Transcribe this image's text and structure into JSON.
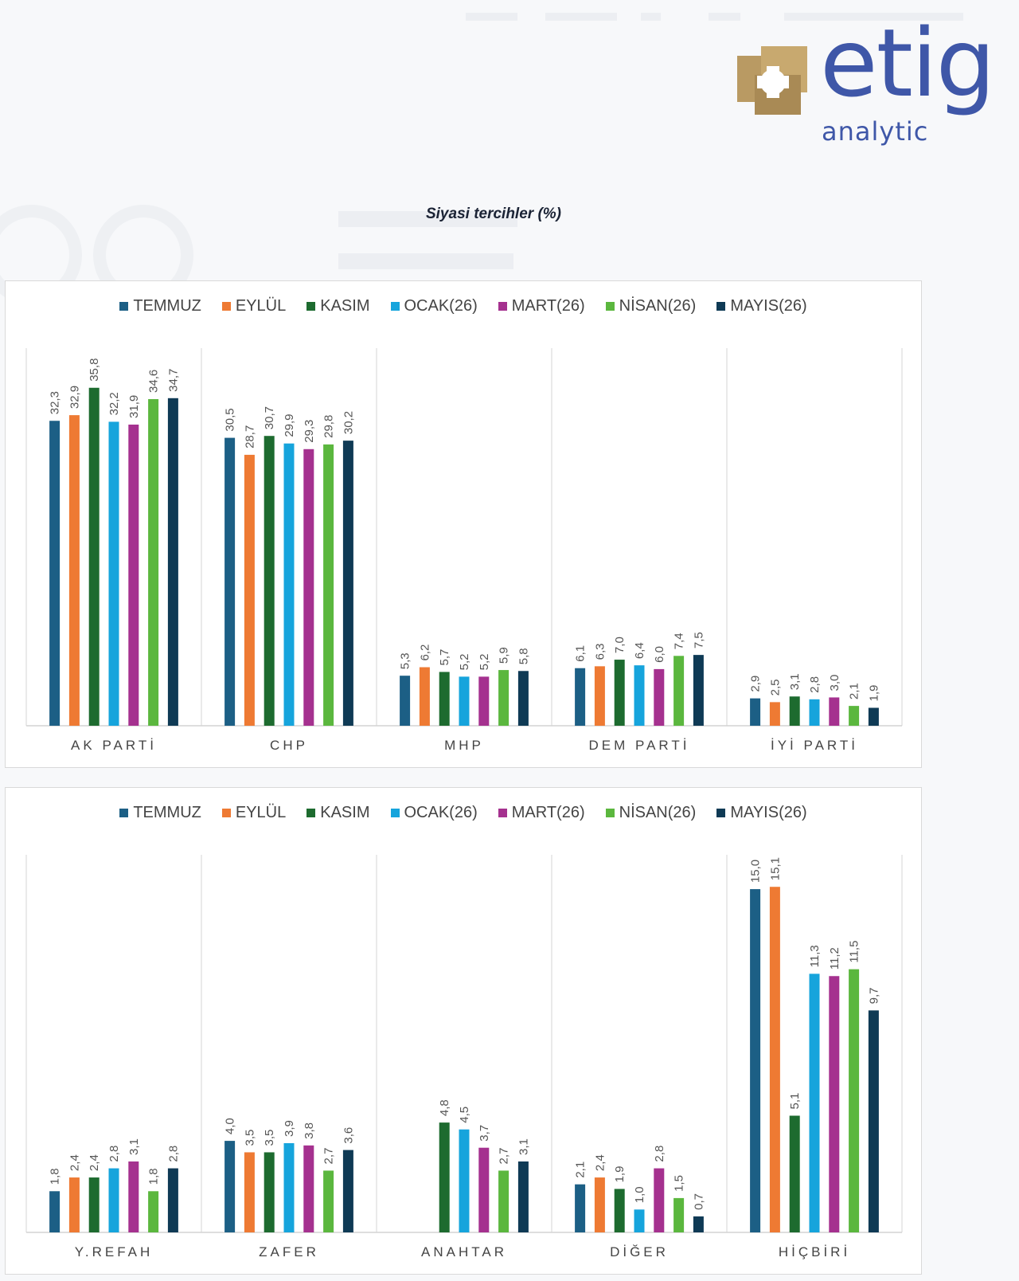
{
  "logo": {
    "word": "etig",
    "sub": "analytic"
  },
  "title": "Siyasi tercihler (%)",
  "colors": {
    "TEMMUZ": "#1c5f85",
    "EYLÜL": "#ee7a33",
    "KASIM": "#1d6b2f",
    "OCAK(26)": "#16a4dc",
    "MART(26)": "#a5318f",
    "NİSAN(26)": "#5bb73e",
    "MAYIS(26)": "#0f3a55"
  },
  "legend": [
    "TEMMUZ",
    "EYLÜL",
    "KASIM",
    "OCAK(26)",
    "MART(26)",
    "NİSAN(26)",
    "MAYIS(26)"
  ],
  "chart_data": [
    {
      "type": "bar",
      "title": "Siyasi tercihler (%)",
      "categories": [
        "AK PARTİ",
        "CHP",
        "MHP",
        "DEM PARTİ",
        "İYİ PARTİ"
      ],
      "ylim": [
        0,
        40
      ],
      "legend_position": "top",
      "grid": false,
      "series": [
        {
          "name": "TEMMUZ",
          "values": [
            32.3,
            30.5,
            5.3,
            6.1,
            2.9
          ],
          "labels": [
            "32,3",
            "30,5",
            "5,3",
            "6,1",
            "2,9"
          ]
        },
        {
          "name": "EYLÜL",
          "values": [
            32.9,
            28.7,
            6.2,
            6.3,
            2.5
          ],
          "labels": [
            "32,9",
            "28,7",
            "6,2",
            "6,3",
            "2,5"
          ]
        },
        {
          "name": "KASIM",
          "values": [
            35.8,
            30.7,
            5.7,
            7.0,
            3.1
          ],
          "labels": [
            "35,8",
            "30,7",
            "5,7",
            "7,0",
            "3,1"
          ]
        },
        {
          "name": "OCAK(26)",
          "values": [
            32.2,
            29.9,
            5.2,
            6.4,
            2.8
          ],
          "labels": [
            "32,2",
            "29,9",
            "5,2",
            "6,4",
            "2,8"
          ]
        },
        {
          "name": "MART(26)",
          "values": [
            31.9,
            29.3,
            5.2,
            6.0,
            3.0
          ],
          "labels": [
            "31,9",
            "29,3",
            "5,2",
            "6,0",
            "3,0"
          ]
        },
        {
          "name": "NİSAN(26)",
          "values": [
            34.6,
            29.8,
            5.9,
            7.4,
            2.1
          ],
          "labels": [
            "34,6",
            "29,8",
            "5,9",
            "7,4",
            "2,1"
          ]
        },
        {
          "name": "MAYIS(26)",
          "values": [
            34.7,
            30.2,
            5.8,
            7.5,
            1.9
          ],
          "labels": [
            "34,7",
            "30,2",
            "5,8",
            "7,5",
            "1,9"
          ]
        }
      ]
    },
    {
      "type": "bar",
      "categories": [
        "Y.REFAH",
        "ZAFER",
        "ANAHTAR",
        "DİĞER",
        "HİÇBİRİ"
      ],
      "ylim": [
        0,
        16.5
      ],
      "legend_position": "top",
      "grid": false,
      "series": [
        {
          "name": "TEMMUZ",
          "values": [
            1.8,
            4.0,
            null,
            2.1,
            15.0
          ],
          "labels": [
            "1,8",
            "4,0",
            "",
            "2,1",
            "15,0"
          ]
        },
        {
          "name": "EYLÜL",
          "values": [
            2.4,
            3.5,
            null,
            2.4,
            15.1
          ],
          "labels": [
            "2,4",
            "3,5",
            "",
            "2,4",
            "15,1"
          ]
        },
        {
          "name": "KASIM",
          "values": [
            2.4,
            3.5,
            4.8,
            1.9,
            5.1
          ],
          "labels": [
            "2,4",
            "3,5",
            "4,8",
            "1,9",
            "5,1"
          ]
        },
        {
          "name": "OCAK(26)",
          "values": [
            2.8,
            3.9,
            4.5,
            1.0,
            11.3
          ],
          "labels": [
            "2,8",
            "3,9",
            "4,5",
            "1,0",
            "11,3"
          ]
        },
        {
          "name": "MART(26)",
          "values": [
            3.1,
            3.8,
            3.7,
            2.8,
            11.2
          ],
          "labels": [
            "3,1",
            "3,8",
            "3,7",
            "2,8",
            "11,2"
          ]
        },
        {
          "name": "NİSAN(26)",
          "values": [
            1.8,
            2.7,
            2.7,
            1.5,
            11.5
          ],
          "labels": [
            "1,8",
            "2,7",
            "2,7",
            "1,5",
            "11,5"
          ]
        },
        {
          "name": "MAYIS(26)",
          "values": [
            2.8,
            3.6,
            3.1,
            0.7,
            9.7
          ],
          "labels": [
            "2,8",
            "3,6",
            "3,1",
            "0,7",
            "9,7"
          ]
        }
      ]
    }
  ]
}
